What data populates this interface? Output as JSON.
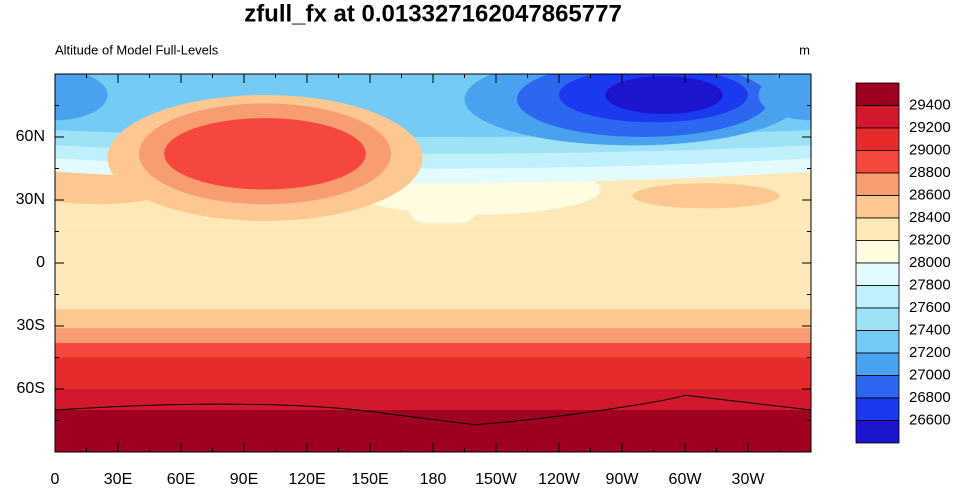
{
  "title": "zfull_fx at 0.013327162047865777",
  "left_string": "Altitude of Model Full-Levels",
  "right_string": "m",
  "map": {
    "xlim": [
      0,
      360
    ],
    "ylim": [
      -90,
      90
    ],
    "xticks": [
      0,
      {
        "value": 30,
        "label": "30E"
      },
      {
        "value": 60,
        "label": "60E"
      },
      {
        "value": 90,
        "label": "90E"
      },
      {
        "value": 120,
        "label": "120E"
      },
      {
        "value": 150,
        "label": "150E"
      },
      {
        "value": 180,
        "label": "180"
      },
      {
        "value": 210,
        "label": "150W"
      },
      {
        "value": 240,
        "label": "120W"
      },
      {
        "value": 270,
        "label": "90W"
      },
      {
        "value": 300,
        "label": "60W"
      },
      {
        "value": 330,
        "label": "30W"
      }
    ],
    "yticks": [
      {
        "value": -60,
        "label": "60S"
      },
      {
        "value": -30,
        "label": "30S"
      },
      0,
      {
        "value": 30,
        "label": "30N"
      },
      {
        "value": 60,
        "label": "60N"
      }
    ]
  },
  "colorbar": {
    "levels": [
      29400,
      29200,
      29000,
      28800,
      28600,
      28400,
      28200,
      28000,
      27800,
      27600,
      27400,
      27200,
      27000,
      26800,
      26600
    ],
    "colors": [
      "#9f0021",
      "#d2182c",
      "#e62b2c",
      "#f5473c",
      "#f89d6f",
      "#fcc790",
      "#fde9b8",
      "#fffce2",
      "#e3fbff",
      "#bff0fb",
      "#9de2f7",
      "#74cbf5",
      "#4aa1ef",
      "#2c68ef",
      "#1b3aee",
      "#1d14d0"
    ]
  }
}
